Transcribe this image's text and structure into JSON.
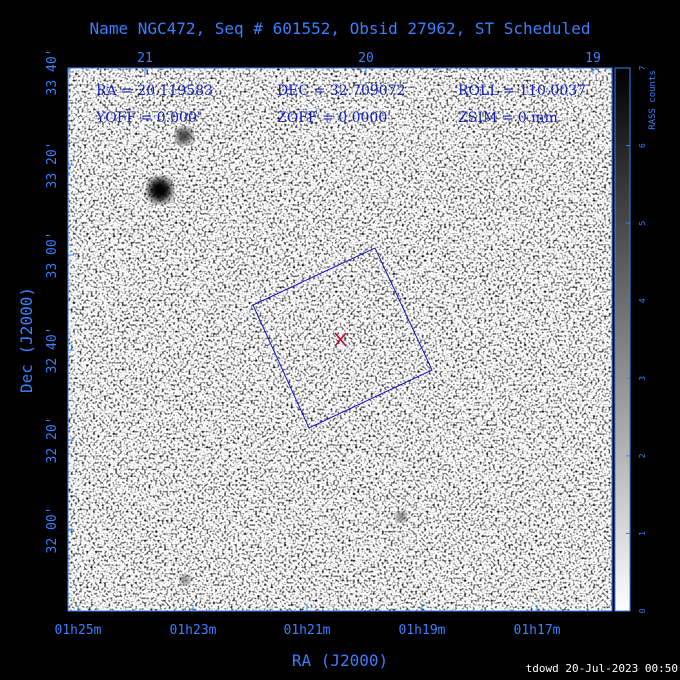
{
  "title": "Name NGC472, Seq # 601552, Obsid 27962, ST Scheduled",
  "info": [
    "RA = 20.119583",
    "DEC = 32.709072",
    "ROLL = 110.0037",
    "YOFF =    0.000'",
    "ZOFF =  0.0000'",
    "ZSIM = 0 mm"
  ],
  "top_ticks": [
    "21",
    "20",
    "19"
  ],
  "left_ticks": [
    "33 40'",
    "33 20'",
    "33 00'",
    "32 40'",
    "32 20'",
    "32 00'"
  ],
  "bottom_ticks": [
    "01h25m",
    "01h23m",
    "01h21m",
    "01h19m",
    "01h17m"
  ],
  "x_label": "RA (J2000)",
  "y_label": "Dec (J2000)",
  "colorbar": {
    "label": "RASS counts",
    "ticks": [
      0,
      1,
      2,
      3,
      4,
      5,
      6,
      7
    ]
  },
  "footer": "tdowd 20-Jul-2023 00:50"
}
